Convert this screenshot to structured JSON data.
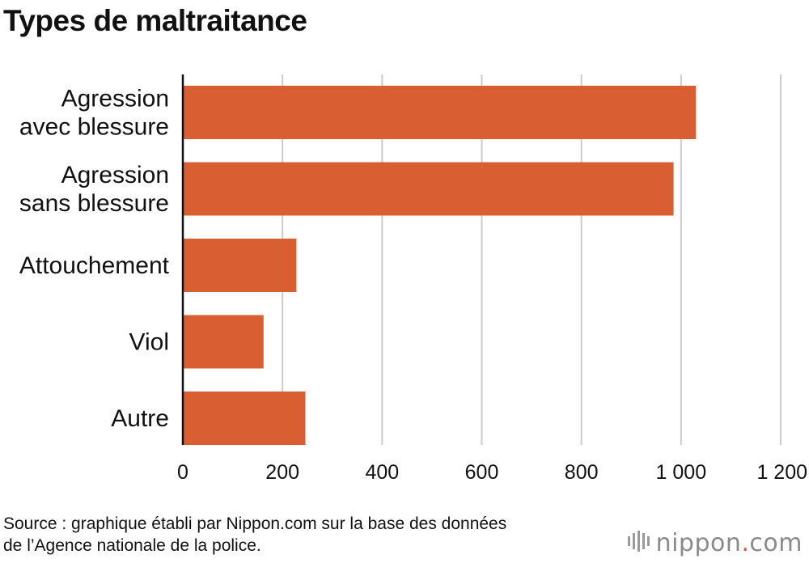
{
  "title": "Types de maltraitance",
  "source_lines": [
    "Source : graphique établi par Nippon.com sur la base des données",
    "de l’Agence nationale de la police."
  ],
  "logo": {
    "prefix": "nippon",
    "dot": ".",
    "suffix": "com",
    "icon": "nippon-logo-icon"
  },
  "colors": {
    "bar": "#d95f32",
    "grid": "#cccccc",
    "axis": "#111111",
    "logo_dot": "#d95f32"
  },
  "chart_data": {
    "type": "bar",
    "orientation": "horizontal",
    "title": "Types de maltraitance",
    "categories": [
      [
        "Agression",
        "avec blessure"
      ],
      [
        "Agression",
        "sans blessure"
      ],
      [
        "Attouchement"
      ],
      [
        "Viol"
      ],
      [
        "Autre"
      ]
    ],
    "values": [
      1030,
      985,
      228,
      162,
      246
    ],
    "xlim": [
      0,
      1200
    ],
    "ticks": [
      0,
      200,
      400,
      600,
      800,
      1000,
      1200
    ],
    "tick_labels": [
      "0",
      "200",
      "400",
      "600",
      "800",
      "1 000",
      "1 200"
    ],
    "grid": true,
    "xlabel": "",
    "ylabel": ""
  }
}
